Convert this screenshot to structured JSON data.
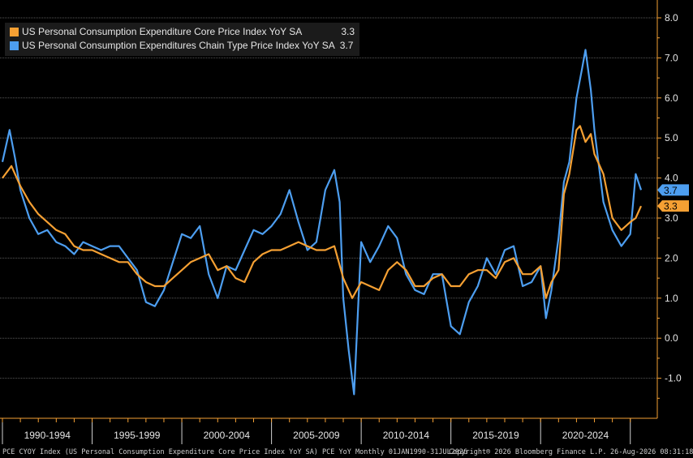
{
  "chart_data": {
    "type": "line",
    "title": "",
    "xlabel": "",
    "ylabel": "",
    "ylim": [
      -2.0,
      8.0
    ],
    "y_ticks": [
      "8.0",
      "7.0",
      "6.0",
      "5.0",
      "4.0",
      "3.0",
      "2.0",
      "1.0",
      "0.0",
      "-1.0"
    ],
    "x_period_labels": [
      "1990-1994",
      "1995-1999",
      "2000-2004",
      "2005-2009",
      "2010-2014",
      "2015-2019",
      "2020-2024"
    ],
    "x_range": [
      1990.0,
      2025.6
    ],
    "grid": true,
    "legend_position": "top-left",
    "series": [
      {
        "name": "US Personal Consumption Expenditure Core Price Index YoY SA",
        "last_value": "3.3",
        "color": "#f5a033",
        "x": [
          1990.0,
          1990.5,
          1991.0,
          1991.5,
          1992.0,
          1992.5,
          1993.0,
          1993.5,
          1994.0,
          1994.5,
          1995.0,
          1995.5,
          1996.0,
          1996.5,
          1997.0,
          1997.5,
          1998.0,
          1998.5,
          1999.0,
          1999.5,
          2000.0,
          2000.5,
          2001.0,
          2001.5,
          2002.0,
          2002.5,
          2003.0,
          2003.5,
          2004.0,
          2004.5,
          2005.0,
          2005.5,
          2006.0,
          2006.5,
          2007.0,
          2007.5,
          2008.0,
          2008.5,
          2009.0,
          2009.5,
          2010.0,
          2010.5,
          2011.0,
          2011.5,
          2012.0,
          2012.5,
          2013.0,
          2013.5,
          2014.0,
          2014.5,
          2015.0,
          2015.5,
          2016.0,
          2016.5,
          2017.0,
          2017.5,
          2018.0,
          2018.5,
          2019.0,
          2019.5,
          2020.0,
          2020.3,
          2020.6,
          2021.0,
          2021.3,
          2021.6,
          2022.0,
          2022.2,
          2022.5,
          2022.8,
          2023.0,
          2023.5,
          2024.0,
          2024.5,
          2025.0,
          2025.3,
          2025.6
        ],
        "values": [
          4.0,
          4.3,
          3.8,
          3.4,
          3.1,
          2.9,
          2.7,
          2.6,
          2.3,
          2.2,
          2.2,
          2.1,
          2.0,
          1.9,
          1.9,
          1.6,
          1.4,
          1.3,
          1.3,
          1.5,
          1.7,
          1.9,
          2.0,
          2.1,
          1.7,
          1.8,
          1.5,
          1.4,
          1.9,
          2.1,
          2.2,
          2.2,
          2.3,
          2.4,
          2.3,
          2.2,
          2.2,
          2.3,
          1.5,
          1.0,
          1.4,
          1.3,
          1.2,
          1.7,
          1.9,
          1.7,
          1.3,
          1.3,
          1.5,
          1.6,
          1.3,
          1.3,
          1.6,
          1.7,
          1.7,
          1.5,
          1.9,
          2.0,
          1.6,
          1.6,
          1.8,
          1.0,
          1.4,
          1.7,
          3.6,
          4.1,
          5.2,
          5.3,
          4.9,
          5.1,
          4.6,
          4.1,
          3.0,
          2.7,
          2.9,
          3.0,
          3.3
        ]
      },
      {
        "name": "US Personal Consumption Expenditures Chain Type Price Index YoY SA",
        "last_value": "3.7",
        "color": "#4d9ef0",
        "x": [
          1990.0,
          1990.4,
          1990.7,
          1991.0,
          1991.5,
          1992.0,
          1992.5,
          1993.0,
          1993.5,
          1994.0,
          1994.5,
          1995.0,
          1995.5,
          1996.0,
          1996.5,
          1997.0,
          1997.5,
          1998.0,
          1998.5,
          1999.0,
          1999.5,
          2000.0,
          2000.5,
          2001.0,
          2001.5,
          2002.0,
          2002.5,
          2003.0,
          2003.5,
          2004.0,
          2004.5,
          2005.0,
          2005.5,
          2006.0,
          2006.5,
          2007.0,
          2007.5,
          2008.0,
          2008.5,
          2008.8,
          2009.0,
          2009.3,
          2009.6,
          2010.0,
          2010.5,
          2011.0,
          2011.5,
          2012.0,
          2012.5,
          2013.0,
          2013.5,
          2014.0,
          2014.5,
          2015.0,
          2015.5,
          2016.0,
          2016.5,
          2017.0,
          2017.5,
          2018.0,
          2018.5,
          2019.0,
          2019.5,
          2020.0,
          2020.3,
          2020.6,
          2021.0,
          2021.3,
          2021.6,
          2022.0,
          2022.3,
          2022.5,
          2022.8,
          2023.0,
          2023.5,
          2024.0,
          2024.5,
          2025.0,
          2025.3,
          2025.6
        ],
        "values": [
          4.4,
          5.2,
          4.5,
          3.7,
          3.0,
          2.6,
          2.7,
          2.4,
          2.3,
          2.1,
          2.4,
          2.3,
          2.2,
          2.3,
          2.3,
          2.0,
          1.7,
          0.9,
          0.8,
          1.2,
          1.9,
          2.6,
          2.5,
          2.8,
          1.6,
          1.0,
          1.8,
          1.7,
          2.2,
          2.7,
          2.6,
          2.8,
          3.1,
          3.7,
          2.9,
          2.2,
          2.4,
          3.7,
          4.2,
          3.4,
          1.0,
          -0.3,
          -1.4,
          2.4,
          1.9,
          2.3,
          2.8,
          2.5,
          1.6,
          1.2,
          1.1,
          1.6,
          1.6,
          0.3,
          0.1,
          0.9,
          1.3,
          2.0,
          1.6,
          2.2,
          2.3,
          1.3,
          1.4,
          1.8,
          0.5,
          1.2,
          2.5,
          3.9,
          4.4,
          6.0,
          6.7,
          7.2,
          6.2,
          5.2,
          3.4,
          2.7,
          2.3,
          2.6,
          4.1,
          3.7
        ]
      }
    ]
  },
  "footer": {
    "left": "PCE CYOY Index (US Personal Consumption Expenditure Core Price Index YoY SA) PCE YoY Monthly 01JAN1990-31JUL2026",
    "copyright": "Copyright® 2026 Bloomberg Finance L.P.",
    "timestamp": "26-Aug-2026 08:31:18"
  }
}
